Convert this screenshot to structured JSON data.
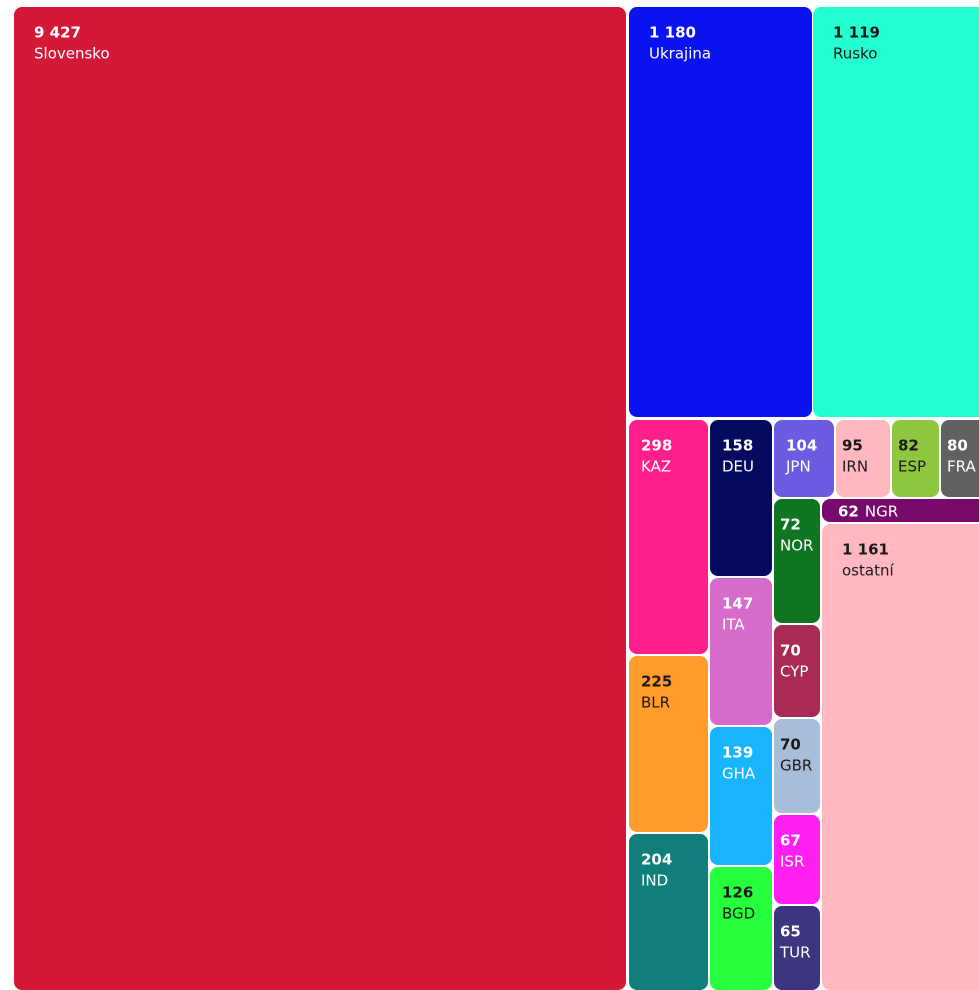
{
  "chart_data": {
    "type": "treemap",
    "categories": [
      "Slovensko",
      "Ukrajina",
      "Rusko",
      "KAZ",
      "BLR",
      "IND",
      "DEU",
      "ITA",
      "GHA",
      "BGD",
      "JPN",
      "IRN",
      "ESP",
      "FRA",
      "NGR",
      "NOR",
      "CYP",
      "GBR",
      "ISR",
      "TUR",
      "ostatní"
    ],
    "values": [
      9427,
      1180,
      1119,
      298,
      225,
      204,
      158,
      147,
      139,
      126,
      104,
      95,
      82,
      80,
      62,
      72,
      70,
      70,
      67,
      65,
      1161
    ],
    "value_labels": [
      "9 427",
      "1 180",
      "1 119",
      "298",
      "225",
      "204",
      "158",
      "147",
      "139",
      "126",
      "104",
      "95",
      "82",
      "80",
      "62",
      "72",
      "70",
      "70",
      "67",
      "65",
      "1 161"
    ],
    "colors": [
      "#d41837",
      "#0b12f0",
      "#24ffd2",
      "#ff1f8a",
      "#ff9c2b",
      "#107f7b",
      "#060a5e",
      "#d66bcc",
      "#1ab5ff",
      "#25ff3e",
      "#6b5be0",
      "#ffb8c0",
      "#8fc640",
      "#616161",
      "#780a6b",
      "#0f7520",
      "#a82a55",
      "#a7bdd8",
      "#ff1ff0",
      "#3d3580",
      "#ffb8c0"
    ]
  }
}
